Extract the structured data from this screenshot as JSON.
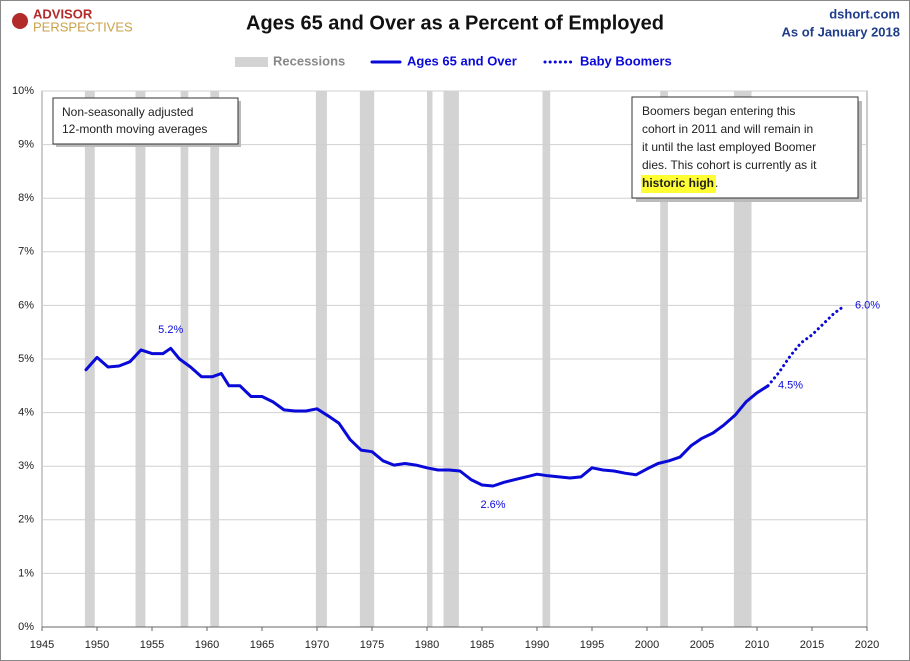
{
  "chart_data": {
    "type": "line",
    "title": "Ages 65 and Over as a Percent of Employed",
    "brand": {
      "line1": "ADVISOR",
      "line2": "PERSPECTIVES"
    },
    "source": "dshort.com",
    "date_note": "As of January 2018",
    "xlim": [
      1945,
      2020
    ],
    "xticks": [
      1945,
      1950,
      1955,
      1960,
      1965,
      1970,
      1975,
      1980,
      1985,
      1990,
      1995,
      2000,
      2005,
      2010,
      2015,
      2020
    ],
    "ylim": [
      0,
      10
    ],
    "yticks": [
      {
        "value": 0,
        "label": "0%"
      },
      {
        "value": 1,
        "label": "1%"
      },
      {
        "value": 2,
        "label": "2%"
      },
      {
        "value": 3,
        "label": "3%"
      },
      {
        "value": 4,
        "label": "4%"
      },
      {
        "value": 5,
        "label": "5%"
      },
      {
        "value": 6,
        "label": "6%"
      },
      {
        "value": 7,
        "label": "7%"
      },
      {
        "value": 8,
        "label": "8%"
      },
      {
        "value": 9,
        "label": "9%"
      },
      {
        "value": 10,
        "label": "10%"
      }
    ],
    "grid": "y",
    "recessions_name": "Recessions",
    "recessions_color": "#d3d3d3",
    "recessions": [
      [
        1948.9,
        1949.8
      ],
      [
        1953.5,
        1954.4
      ],
      [
        1957.6,
        1958.3
      ],
      [
        1960.3,
        1961.1
      ],
      [
        1969.9,
        1970.9
      ],
      [
        1973.9,
        1975.2
      ],
      [
        1980.0,
        1980.5
      ],
      [
        1981.5,
        1982.9
      ],
      [
        1990.5,
        1991.2
      ],
      [
        2001.2,
        2001.9
      ],
      [
        2007.9,
        2009.5
      ]
    ],
    "series": [
      {
        "name": "Ages 65 and Over",
        "color": "#0a0ad8",
        "style": "solid",
        "x": [
          1949,
          1950,
          1951,
          1952,
          1953,
          1954,
          1955,
          1956,
          1956.7,
          1957.5,
          1958.5,
          1959.5,
          1960.5,
          1961.3,
          1962,
          1963,
          1964,
          1965,
          1966,
          1967,
          1968,
          1969,
          1970,
          1971,
          1972,
          1973,
          1974,
          1975,
          1976,
          1977,
          1978,
          1979,
          1980,
          1981,
          1982,
          1983,
          1984,
          1985,
          1986,
          1987,
          1988,
          1989,
          1990,
          1991,
          1992,
          1993,
          1994,
          1995,
          1996,
          1997,
          1998,
          1999,
          2000,
          2001,
          2002,
          2003,
          2004,
          2005,
          2006,
          2007,
          2008,
          2009,
          2010,
          2011
        ],
        "values": [
          4.8,
          5.03,
          4.85,
          4.87,
          4.95,
          5.17,
          5.1,
          5.1,
          5.2,
          5.0,
          4.85,
          4.67,
          4.67,
          4.73,
          4.5,
          4.5,
          4.3,
          4.3,
          4.2,
          4.05,
          4.03,
          4.03,
          4.07,
          3.94,
          3.8,
          3.5,
          3.3,
          3.27,
          3.1,
          3.02,
          3.05,
          3.02,
          2.97,
          2.93,
          2.93,
          2.91,
          2.75,
          2.65,
          2.63,
          2.7,
          2.75,
          2.8,
          2.85,
          2.82,
          2.8,
          2.78,
          2.8,
          2.97,
          2.93,
          2.91,
          2.87,
          2.84,
          2.95,
          3.05,
          3.1,
          3.17,
          3.38,
          3.52,
          3.62,
          3.77,
          3.95,
          4.2,
          4.37,
          4.5
        ]
      },
      {
        "name": "Baby Boomers",
        "color": "#0a0ad8",
        "style": "dotted",
        "x": [
          2011,
          2012,
          2013,
          2014,
          2015,
          2016,
          2017,
          2018
        ],
        "values": [
          4.5,
          4.75,
          5.05,
          5.3,
          5.45,
          5.65,
          5.85,
          6.0
        ]
      }
    ],
    "data_labels": [
      {
        "x": 1956.7,
        "y": 5.2,
        "label": "5.2%",
        "position": "above"
      },
      {
        "x": 1986,
        "y": 2.63,
        "label": "2.6%",
        "position": "below"
      },
      {
        "x": 2011,
        "y": 4.5,
        "label": "4.5%",
        "position": "right"
      },
      {
        "x": 2018,
        "y": 6.0,
        "label": "6.0%",
        "position": "right"
      }
    ],
    "note_left": [
      "Non-seasonally adjusted",
      "12-month moving averages"
    ],
    "note_right": {
      "lines": [
        "Boomers began entering this",
        "cohort in 2011  and will remain in",
        "it until the last employed Boomer",
        "dies. This cohort is currently as it"
      ],
      "highlight": "historic high",
      "after": "."
    }
  }
}
